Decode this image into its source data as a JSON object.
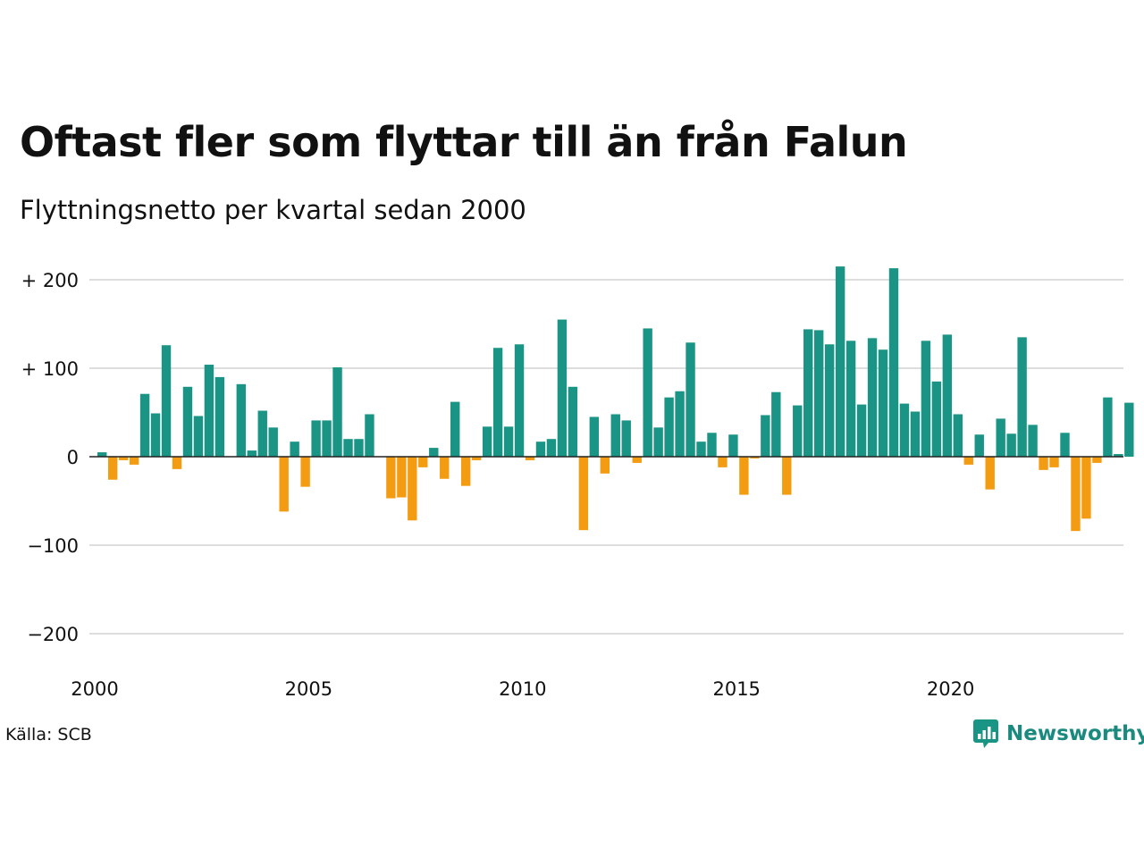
{
  "title": "Oftast fler som flyttar till än från Falun",
  "subtitle": "Flyttningsnetto per kvartal sedan 2000",
  "source": "Källa: SCB",
  "brand": {
    "name": "Newsworthy",
    "icon": "newsworthy-logo-icon"
  },
  "colors": {
    "positive": "#1a9585",
    "negative": "#f39c12",
    "grid": "#dddddd",
    "zero": "#222222"
  },
  "chart_data": {
    "type": "bar",
    "title": "Oftast fler som flyttar till än från Falun",
    "subtitle": "Flyttningsnetto per kvartal sedan 2000",
    "x_start_year": 2000,
    "x_ticks": [
      2000,
      2005,
      2010,
      2015,
      2020
    ],
    "x_tick_labels": [
      "2000",
      "2005",
      "2010",
      "2015",
      "2020"
    ],
    "y_ticks": [
      200,
      100,
      0,
      -100,
      -200
    ],
    "y_tick_labels": [
      "+ 200",
      "+ 100",
      "0",
      "−100",
      "−200"
    ],
    "ylim": [
      -200,
      200
    ],
    "grid": true,
    "values": [
      5,
      -26,
      -4,
      -9,
      71,
      49,
      126,
      -14,
      79,
      46,
      104,
      90,
      0,
      82,
      7,
      52,
      33,
      -62,
      17,
      -34,
      41,
      41,
      101,
      20,
      20,
      48,
      0,
      -47,
      -46,
      -72,
      -12,
      10,
      -25,
      62,
      -33,
      -4,
      34,
      123,
      34,
      127,
      -4,
      17,
      20,
      155,
      79,
      -83,
      45,
      -19,
      48,
      41,
      -7,
      145,
      33,
      67,
      74,
      129,
      17,
      27,
      -12,
      25,
      -43,
      -2,
      47,
      73,
      -43,
      58,
      144,
      143,
      127,
      215,
      131,
      59,
      134,
      121,
      213,
      60,
      51,
      131,
      85,
      138,
      48,
      -9,
      25,
      -37,
      43,
      26,
      135,
      36,
      -15,
      -12,
      27,
      -84,
      -70,
      -7,
      67,
      3,
      61
    ]
  }
}
